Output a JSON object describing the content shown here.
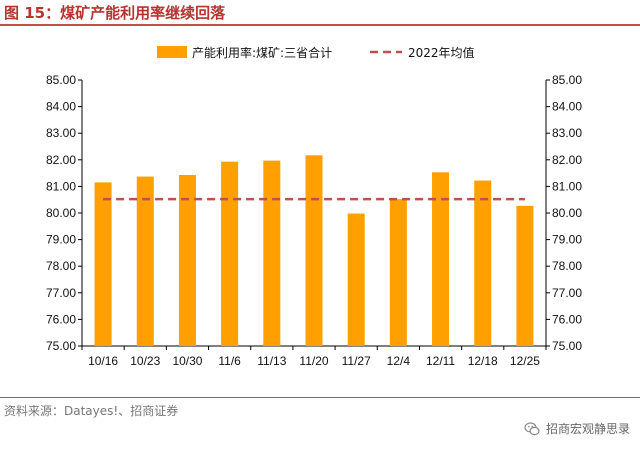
{
  "title": "图 15：煤矿产能利用率继续回落",
  "source": "资料来源：Datayes!、招商证券",
  "brand": "招商宏观静思录",
  "brand_icon": "wechat-icon",
  "colors": {
    "bar": "#ff9f00",
    "avg_line": "#c0504d",
    "title": "#b5342f"
  },
  "chart_data": {
    "type": "bar",
    "categories": [
      "10/16",
      "10/23",
      "10/30",
      "11/6",
      "11/13",
      "11/20",
      "11/27",
      "12/4",
      "12/11",
      "12/18",
      "12/25"
    ],
    "series": [
      {
        "name": "产能利用率:煤矿:三省合计",
        "type": "bar",
        "values": [
          81.15,
          81.37,
          81.43,
          81.93,
          81.97,
          82.17,
          79.98,
          80.52,
          81.53,
          81.22,
          80.27
        ]
      },
      {
        "name": "2022年均值",
        "type": "line",
        "style": "dashed",
        "values": [
          80.52,
          80.52,
          80.52,
          80.52,
          80.52,
          80.52,
          80.52,
          80.52,
          80.52,
          80.52,
          80.52
        ]
      }
    ],
    "ylim": [
      75,
      85
    ],
    "yticks": [
      "75.00",
      "76.00",
      "77.00",
      "78.00",
      "79.00",
      "80.00",
      "81.00",
      "82.00",
      "83.00",
      "84.00",
      "85.00"
    ],
    "y2lim": [
      75,
      85
    ],
    "y2ticks": [
      "75.00",
      "76.00",
      "77.00",
      "78.00",
      "79.00",
      "80.00",
      "81.00",
      "82.00",
      "83.00",
      "84.00",
      "85.00"
    ],
    "grid": false,
    "legend_position": "top"
  }
}
